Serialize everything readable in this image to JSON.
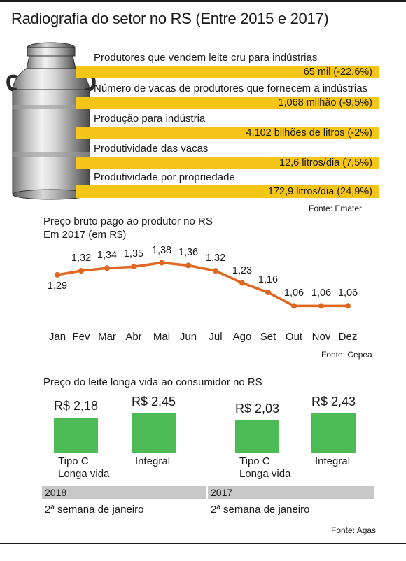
{
  "title": "Radiografia do setor no RS (Entre 2015 e 2017)",
  "stats": [
    {
      "label": "Produtores que vendem leite cru para indústrias",
      "value": "65 mil (-22,6%)"
    },
    {
      "label": "Número de vacas de produtores que fornecem a indústrias",
      "value": "1,068 milhão (-9,5%)"
    },
    {
      "label": "Produção para indústria",
      "value": "4,102 bilhões de litros (-2%)"
    },
    {
      "label": "Produtividade das vacas",
      "value": "12,6 litros/dia (7,5%)"
    },
    {
      "label": "Produtividade por propriedade",
      "value": "172,9 litros/dia (24,9%)"
    }
  ],
  "stats_source": "Fonte: Emater",
  "icons": {
    "illustration": "milk-can-icon"
  },
  "colors": {
    "highlight": "#f5c518",
    "line": "#e0671f",
    "bars": "#4dbb55",
    "year_band": "#c8c8c8"
  },
  "chart_data": [
    {
      "type": "line",
      "title": "Preço bruto pago ao produtor no RS",
      "subtitle": "Em 2017 (em R$)",
      "categories": [
        "Jan",
        "Fev",
        "Mar",
        "Abr",
        "Mai",
        "Jun",
        "Jul",
        "Ago",
        "Set",
        "Out",
        "Nov",
        "Dez"
      ],
      "values": [
        1.29,
        1.32,
        1.34,
        1.35,
        1.38,
        1.36,
        1.32,
        1.23,
        1.16,
        1.06,
        1.06,
        1.06
      ],
      "value_labels": [
        "1,29",
        "1,32",
        "1,34",
        "1,35",
        "1,38",
        "1,36",
        "1,32",
        "1,23",
        "1,16",
        "1,06",
        "1,06",
        "1,06"
      ],
      "ylim": [
        1.0,
        1.45
      ],
      "grid": false,
      "source": "Fonte: Cepea"
    },
    {
      "type": "bar",
      "title": "Preço do leite longa vida ao consumidor no RS",
      "groups": [
        {
          "year": "2018",
          "period": "2ª semana de janeiro",
          "bars": [
            {
              "category": "Tipo C\nLonga vida",
              "value": 2.18,
              "label": "R$ 2,18"
            },
            {
              "category": "Integral",
              "value": 2.45,
              "label": "R$ 2,45"
            }
          ]
        },
        {
          "year": "2017",
          "period": "2ª semana de janeiro",
          "bars": [
            {
              "category": "Tipo C\nLonga vida",
              "value": 2.03,
              "label": "R$ 2,03"
            },
            {
              "category": "Integral",
              "value": 2.43,
              "label": "R$ 2,43"
            }
          ]
        }
      ],
      "source": "Fonte: Agas"
    }
  ]
}
